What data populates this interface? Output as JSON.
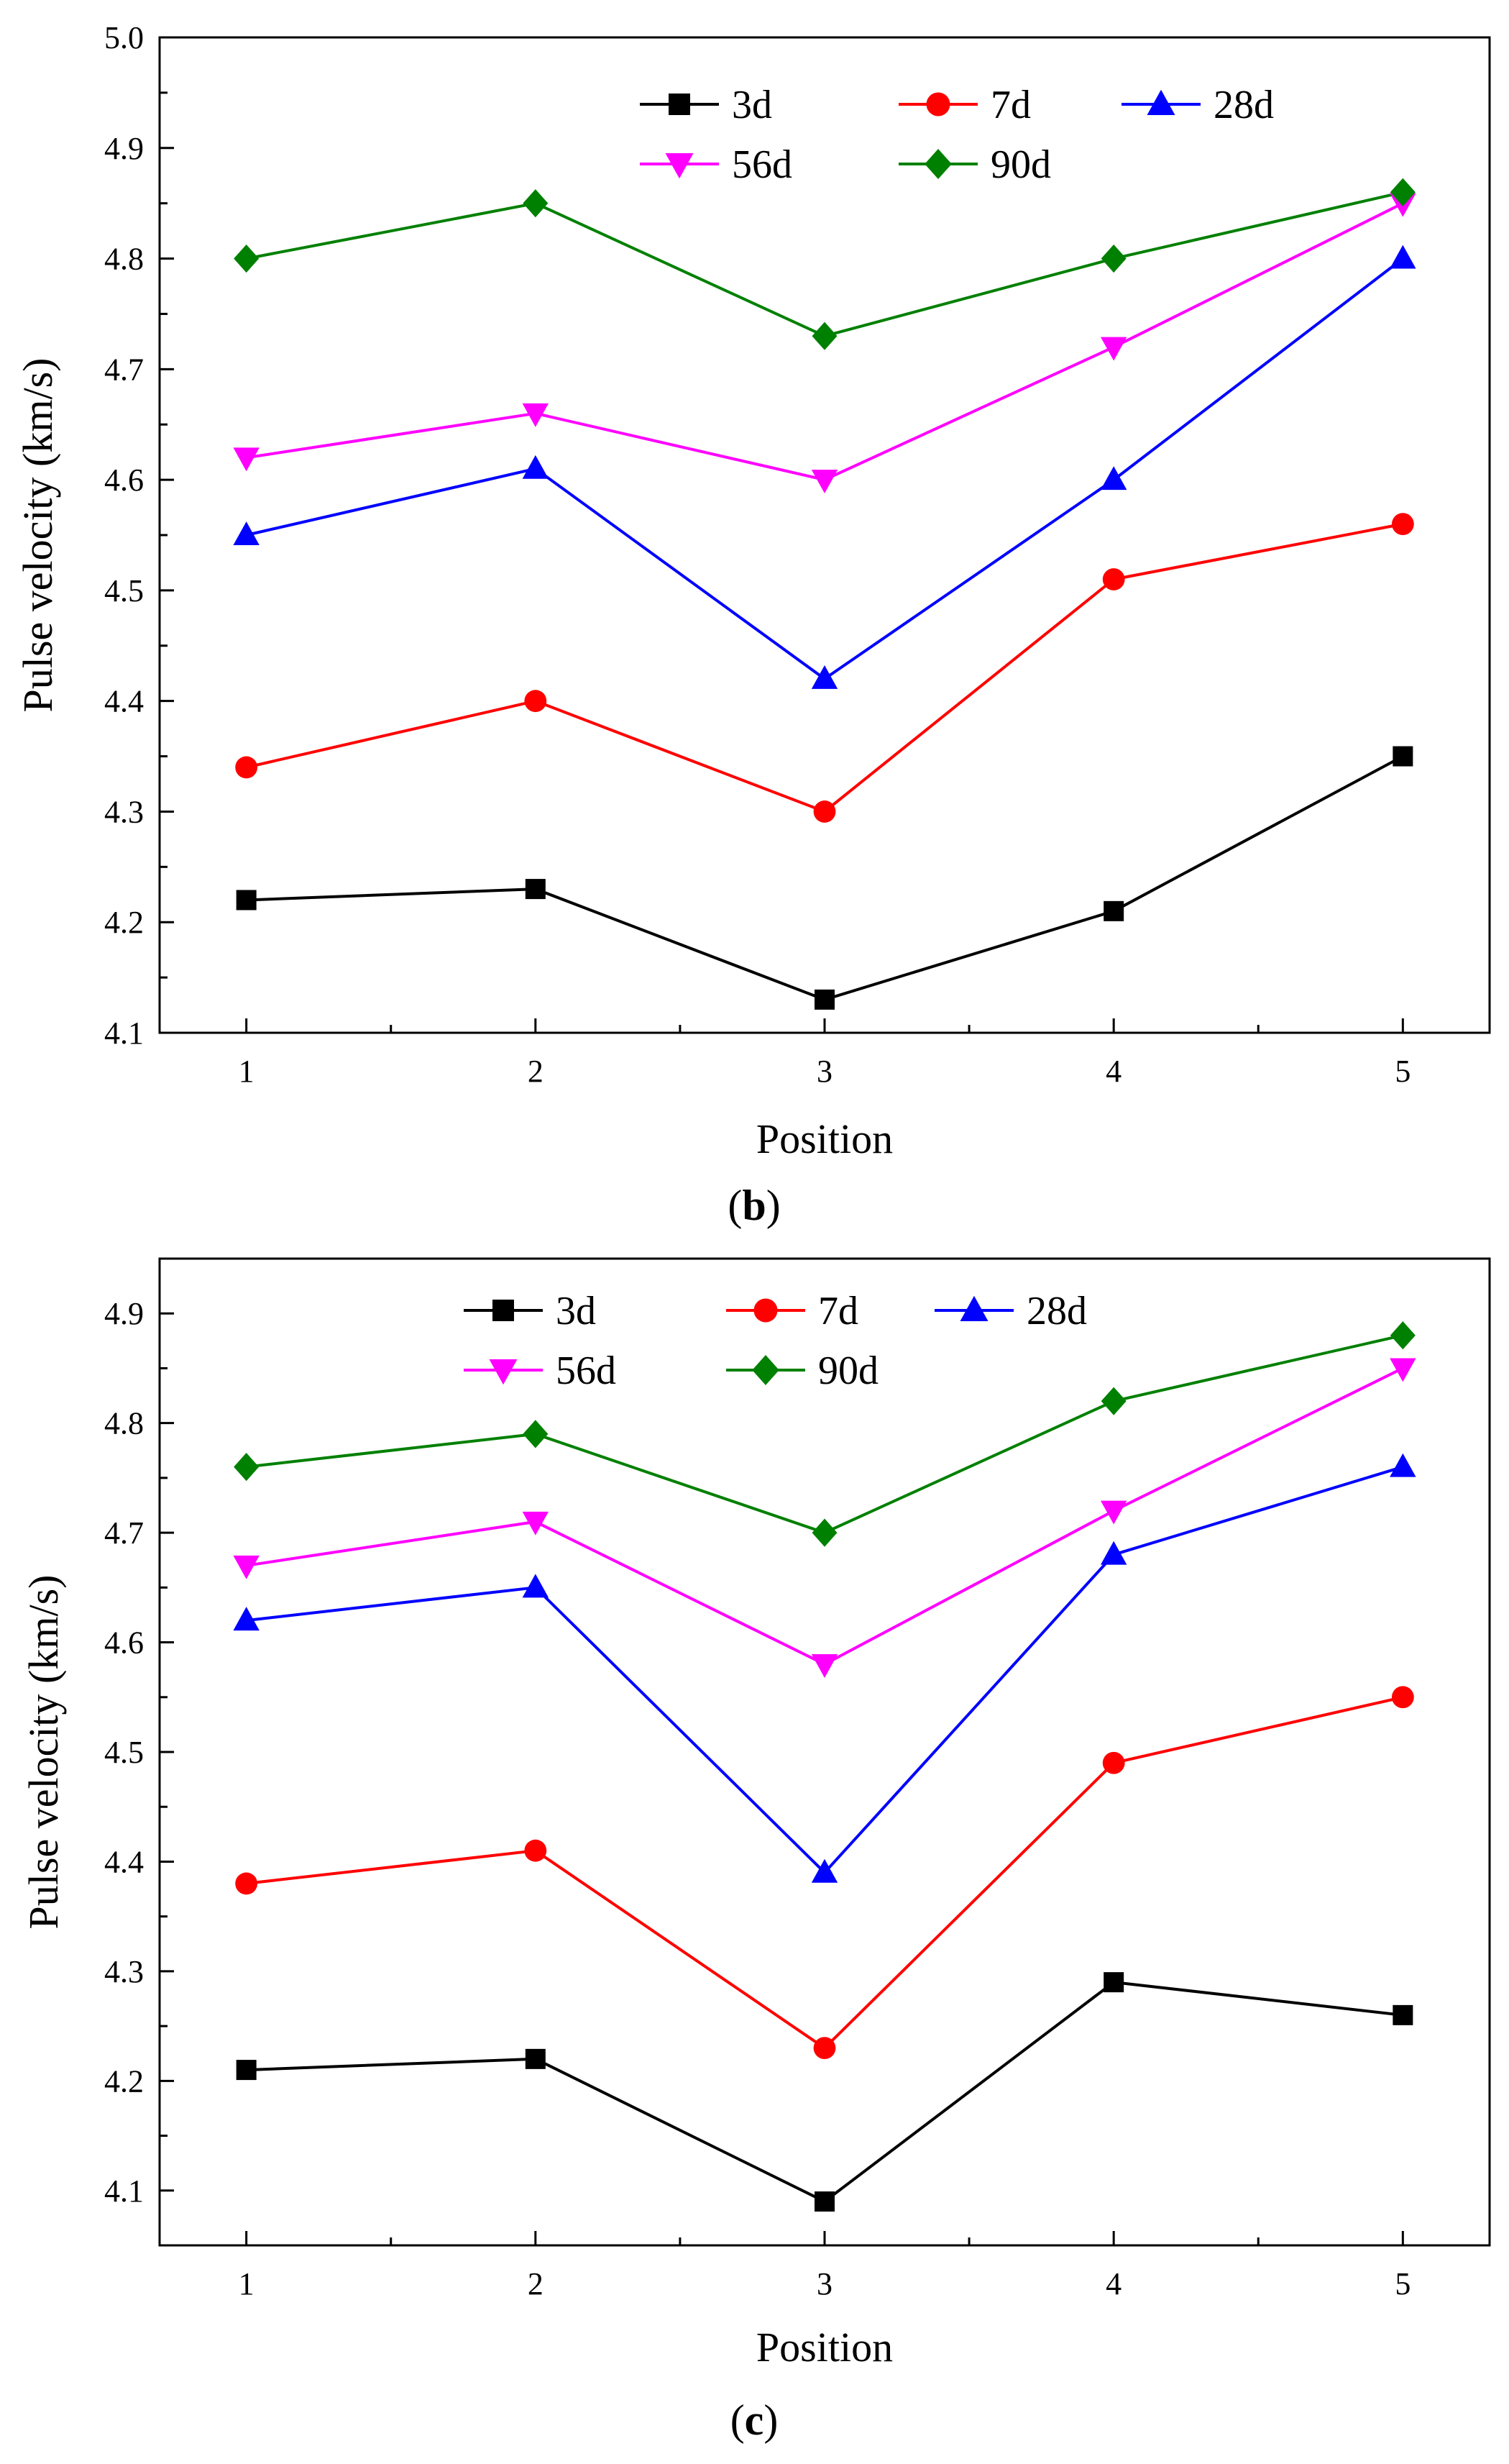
{
  "chart_data": [
    {
      "type": "line",
      "panel_label": "b",
      "xlabel": "Position",
      "ylabel": "Pulse velocity (km/s)",
      "x": [
        1,
        2,
        3,
        4,
        5
      ],
      "xlim": [
        0.7,
        5.3
      ],
      "ylim": [
        4.1,
        5.0
      ],
      "yticks": [
        4.1,
        4.2,
        4.3,
        4.4,
        4.5,
        4.6,
        4.7,
        4.8,
        4.9,
        5.0
      ],
      "grid": false,
      "legend_position": "top",
      "series": [
        {
          "name": "3d",
          "color": "#000000",
          "marker": "square",
          "values": [
            4.22,
            4.23,
            4.13,
            4.21,
            4.35
          ]
        },
        {
          "name": "7d",
          "color": "#ff0000",
          "marker": "circle",
          "values": [
            4.34,
            4.4,
            4.3,
            4.51,
            4.56
          ]
        },
        {
          "name": "28d",
          "color": "#0000ff",
          "marker": "triangle-up",
          "values": [
            4.55,
            4.61,
            4.42,
            4.6,
            4.8
          ]
        },
        {
          "name": "56d",
          "color": "#ff00ff",
          "marker": "triangle-down",
          "values": [
            4.62,
            4.66,
            4.6,
            4.72,
            4.85
          ]
        },
        {
          "name": "90d",
          "color": "#008000",
          "marker": "diamond",
          "values": [
            4.8,
            4.85,
            4.73,
            4.8,
            4.86
          ]
        }
      ]
    },
    {
      "type": "line",
      "panel_label": "c",
      "xlabel": "Position",
      "ylabel": "Pulse velocity (km/s)",
      "x": [
        1,
        2,
        3,
        4,
        5
      ],
      "xlim": [
        0.7,
        5.3
      ],
      "ylim": [
        4.05,
        4.95
      ],
      "yticks": [
        4.1,
        4.2,
        4.3,
        4.4,
        4.5,
        4.6,
        4.7,
        4.8,
        4.9
      ],
      "grid": false,
      "legend_position": "top",
      "series": [
        {
          "name": "3d",
          "color": "#000000",
          "marker": "square",
          "values": [
            4.21,
            4.22,
            4.09,
            4.29,
            4.26
          ]
        },
        {
          "name": "7d",
          "color": "#ff0000",
          "marker": "circle",
          "values": [
            4.38,
            4.41,
            4.23,
            4.49,
            4.55
          ]
        },
        {
          "name": "28d",
          "color": "#0000ff",
          "marker": "triangle-up",
          "values": [
            4.62,
            4.65,
            4.39,
            4.68,
            4.76
          ]
        },
        {
          "name": "56d",
          "color": "#ff00ff",
          "marker": "triangle-down",
          "values": [
            4.67,
            4.71,
            4.58,
            4.72,
            4.85
          ]
        },
        {
          "name": "90d",
          "color": "#008000",
          "marker": "diamond",
          "values": [
            4.76,
            4.79,
            4.7,
            4.82,
            4.88
          ]
        }
      ]
    }
  ]
}
